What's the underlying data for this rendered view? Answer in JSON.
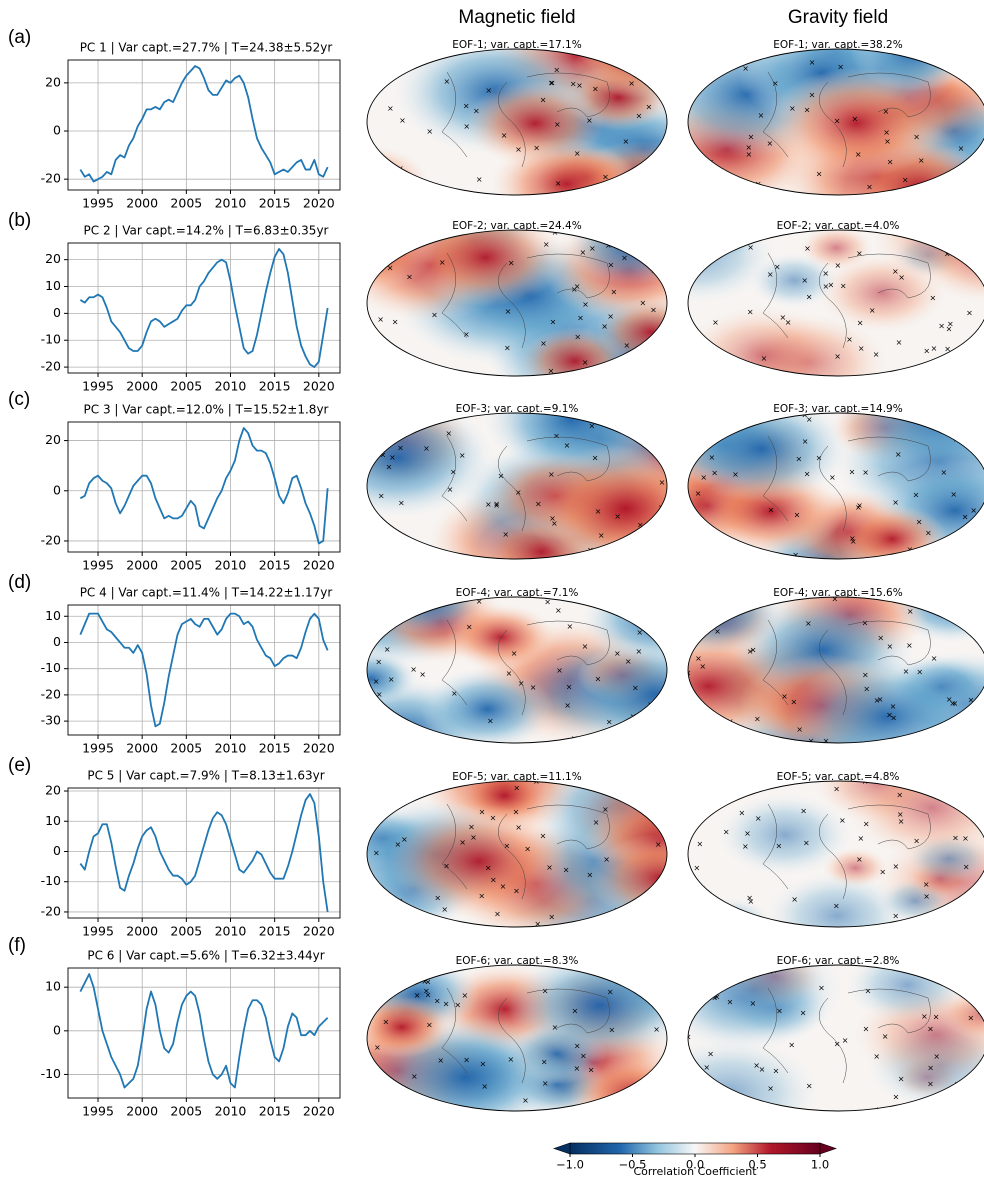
{
  "chart_data": [
    {
      "type": "line",
      "panel_label": "(a)",
      "title": "PC 1 | Var capt.=27.7% | T=24.38±5.52yr",
      "x": [
        1993,
        1993.5,
        1994,
        1994.5,
        1995,
        1995.5,
        1996,
        1996.5,
        1997,
        1997.5,
        1998,
        1998.5,
        1999,
        1999.5,
        2000,
        2000.5,
        2001,
        2001.5,
        2002,
        2002.5,
        2003,
        2003.5,
        2004,
        2004.5,
        2005,
        2005.5,
        2006,
        2006.5,
        2007,
        2007.5,
        2008,
        2008.5,
        2009,
        2009.5,
        2010,
        2010.5,
        2011,
        2011.5,
        2012,
        2012.5,
        2013,
        2013.5,
        2014,
        2014.5,
        2015,
        2015.5,
        2016,
        2016.5,
        2017,
        2017.5,
        2018,
        2018.5,
        2019,
        2019.5,
        2020,
        2020.5,
        2021
      ],
      "values": [
        -16,
        -19,
        -18,
        -21,
        -20,
        -19,
        -17,
        -18,
        -12,
        -10,
        -11,
        -6,
        -3,
        2,
        5,
        9,
        9,
        10,
        9,
        12,
        13,
        12,
        16,
        20,
        23,
        25,
        27,
        26,
        22,
        17,
        15,
        15,
        18,
        21,
        20,
        22,
        23,
        20,
        14,
        5,
        -3,
        -7,
        -10,
        -13,
        -18,
        -17,
        -16,
        -17,
        -15,
        -13,
        -12,
        -16,
        -16,
        -12,
        -18,
        -19,
        -15
      ],
      "color": "#1f77b4",
      "xlim": [
        1991.6,
        2022.4
      ],
      "xticks": [
        1995,
        2000,
        2005,
        2010,
        2015,
        2020
      ],
      "ylim": [
        -24.5,
        29.5
      ],
      "yticks": [
        -20,
        0,
        20
      ],
      "grid": true
    },
    {
      "type": "line",
      "panel_label": "(b)",
      "title": "PC 2 | Var capt.=14.2% | T=6.83±0.35yr",
      "x": [
        1993,
        1993.5,
        1994,
        1994.5,
        1995,
        1995.5,
        1996,
        1996.5,
        1997,
        1997.5,
        1998,
        1998.5,
        1999,
        1999.5,
        2000,
        2000.5,
        2001,
        2001.5,
        2002,
        2002.5,
        2003,
        2003.5,
        2004,
        2004.5,
        2005,
        2005.5,
        2006,
        2006.5,
        2007,
        2007.5,
        2008,
        2008.5,
        2009,
        2009.5,
        2010,
        2010.5,
        2011,
        2011.5,
        2012,
        2012.5,
        2013,
        2013.5,
        2014,
        2014.5,
        2015,
        2015.5,
        2016,
        2016.5,
        2017,
        2017.5,
        2018,
        2018.5,
        2019,
        2019.5,
        2020,
        2020.5,
        2021
      ],
      "values": [
        5,
        4,
        6,
        6,
        7,
        6,
        2,
        -3,
        -5,
        -7,
        -10,
        -13,
        -14,
        -14,
        -12,
        -7,
        -3,
        -2,
        -3,
        -5,
        -4,
        -3,
        -2,
        1,
        3,
        3,
        5,
        10,
        12,
        15,
        17,
        19,
        20,
        19,
        12,
        3,
        -5,
        -13,
        -15,
        -14,
        -8,
        0,
        8,
        15,
        21,
        24,
        22,
        15,
        5,
        -5,
        -12,
        -16,
        -19,
        -20,
        -18,
        -8,
        2
      ],
      "color": "#1f77b4",
      "xlim": [
        1991.6,
        2022.4
      ],
      "xticks": [
        1995,
        2000,
        2005,
        2010,
        2015,
        2020
      ],
      "ylim": [
        -22.2,
        26.2
      ],
      "yticks": [
        -20,
        -10,
        0,
        10,
        20
      ],
      "grid": true
    },
    {
      "type": "line",
      "panel_label": "(c)",
      "title": "PC 3 | Var capt.=12.0% | T=15.52±1.8yr",
      "x": [
        1993,
        1993.5,
        1994,
        1994.5,
        1995,
        1995.5,
        1996,
        1996.5,
        1997,
        1997.5,
        1998,
        1998.5,
        1999,
        1999.5,
        2000,
        2000.5,
        2001,
        2001.5,
        2002,
        2002.5,
        2003,
        2003.5,
        2004,
        2004.5,
        2005,
        2005.5,
        2006,
        2006.5,
        2007,
        2007.5,
        2008,
        2008.5,
        2009,
        2009.5,
        2010,
        2010.5,
        2011,
        2011.5,
        2012,
        2012.5,
        2013,
        2013.5,
        2014,
        2014.5,
        2015,
        2015.5,
        2016,
        2016.5,
        2017,
        2017.5,
        2018,
        2018.5,
        2019,
        2019.5,
        2020,
        2020.5,
        2021
      ],
      "values": [
        -3,
        -2,
        3,
        5,
        6,
        4,
        3,
        1,
        -5,
        -9,
        -6,
        -2,
        2,
        4,
        6,
        6,
        3,
        -3,
        -7,
        -11,
        -10,
        -11,
        -11,
        -10,
        -7,
        -4,
        -6,
        -14,
        -15,
        -11,
        -7,
        -3,
        0,
        5,
        8,
        12,
        20,
        25,
        23,
        18,
        16,
        16,
        15,
        11,
        5,
        -2,
        -5,
        -1,
        5,
        6,
        1,
        -5,
        -9,
        -14,
        -21,
        -20,
        1
      ],
      "color": "#1f77b4",
      "xlim": [
        1991.6,
        2022.4
      ],
      "xticks": [
        1995,
        2000,
        2005,
        2010,
        2015,
        2020
      ],
      "ylim": [
        -24.4,
        27.4
      ],
      "yticks": [
        -20,
        0,
        20
      ],
      "grid": true
    },
    {
      "type": "line",
      "panel_label": "(d)",
      "title": "PC 4 | Var capt.=11.4% | T=14.22±1.17yr",
      "x": [
        1993,
        1993.5,
        1994,
        1994.5,
        1995,
        1995.5,
        1996,
        1996.5,
        1997,
        1997.5,
        1998,
        1998.5,
        1999,
        1999.5,
        2000,
        2000.5,
        2001,
        2001.5,
        2002,
        2002.5,
        2003,
        2003.5,
        2004,
        2004.5,
        2005,
        2005.5,
        2006,
        2006.5,
        2007,
        2007.5,
        2008,
        2008.5,
        2009,
        2009.5,
        2010,
        2010.5,
        2011,
        2011.5,
        2012,
        2012.5,
        2013,
        2013.5,
        2014,
        2014.5,
        2015,
        2015.5,
        2016,
        2016.5,
        2017,
        2017.5,
        2018,
        2018.5,
        2019,
        2019.5,
        2020,
        2020.5,
        2021
      ],
      "values": [
        3,
        7,
        11,
        11,
        11,
        8,
        5,
        4,
        2,
        0,
        -2,
        -2,
        -4,
        -1,
        -4,
        -12,
        -24,
        -32,
        -31,
        -23,
        -13,
        -5,
        3,
        7,
        8,
        9,
        7,
        6,
        9,
        9,
        6,
        3,
        5,
        9,
        11,
        11,
        10,
        7,
        8,
        6,
        1,
        -2,
        -5,
        -6,
        -9,
        -8,
        -6,
        -5,
        -5,
        -6,
        -2,
        4,
        9,
        11,
        9,
        1,
        -3
      ],
      "color": "#1f77b4",
      "xlim": [
        1991.6,
        2022.4
      ],
      "xticks": [
        1995,
        2000,
        2005,
        2010,
        2015,
        2020
      ],
      "ylim": [
        -35.3,
        14.3
      ],
      "yticks": [
        -30,
        -20,
        -10,
        0,
        10
      ],
      "grid": true
    },
    {
      "type": "line",
      "panel_label": "(e)",
      "title": "PC 5 | Var capt.=7.9% | T=8.13±1.63yr",
      "x": [
        1993,
        1993.5,
        1994,
        1994.5,
        1995,
        1995.5,
        1996,
        1996.5,
        1997,
        1997.5,
        1998,
        1998.5,
        1999,
        1999.5,
        2000,
        2000.5,
        2001,
        2001.5,
        2002,
        2002.5,
        2003,
        2003.5,
        2004,
        2004.5,
        2005,
        2005.5,
        2006,
        2006.5,
        2007,
        2007.5,
        2008,
        2008.5,
        2009,
        2009.5,
        2010,
        2010.5,
        2011,
        2011.5,
        2012,
        2012.5,
        2013,
        2013.5,
        2014,
        2014.5,
        2015,
        2015.5,
        2016,
        2016.5,
        2017,
        2017.5,
        2018,
        2018.5,
        2019,
        2019.5,
        2020,
        2020.5,
        2021
      ],
      "values": [
        -4,
        -6,
        0,
        5,
        6,
        9,
        9,
        3,
        -5,
        -12,
        -13,
        -8,
        -4,
        1,
        5,
        7,
        8,
        5,
        0,
        -3,
        -6,
        -8,
        -8,
        -9,
        -11,
        -10,
        -8,
        -3,
        2,
        7,
        11,
        13,
        12,
        9,
        4,
        -1,
        -6,
        -7,
        -5,
        -3,
        0,
        -1,
        -4,
        -7,
        -9,
        -9,
        -9,
        -5,
        0,
        6,
        12,
        17,
        19,
        16,
        5,
        -10,
        -20
      ],
      "color": "#1f77b4",
      "xlim": [
        1991.6,
        2022.4
      ],
      "xticks": [
        1995,
        2000,
        2005,
        2010,
        2015,
        2020
      ],
      "ylim": [
        -22,
        21
      ],
      "yticks": [
        -20,
        -10,
        0,
        10,
        20
      ],
      "grid": true
    },
    {
      "type": "line",
      "panel_label": "(f)",
      "title": "PC 6 | Var capt.=5.6% | T=6.32±3.44yr",
      "x": [
        1993,
        1993.5,
        1994,
        1994.5,
        1995,
        1995.5,
        1996,
        1996.5,
        1997,
        1997.5,
        1998,
        1998.5,
        1999,
        1999.5,
        2000,
        2000.5,
        2001,
        2001.5,
        2002,
        2002.5,
        2003,
        2003.5,
        2004,
        2004.5,
        2005,
        2005.5,
        2006,
        2006.5,
        2007,
        2007.5,
        2008,
        2008.5,
        2009,
        2009.5,
        2010,
        2010.5,
        2011,
        2011.5,
        2012,
        2012.5,
        2013,
        2013.5,
        2014,
        2014.5,
        2015,
        2015.5,
        2016,
        2016.5,
        2017,
        2017.5,
        2018,
        2018.5,
        2019,
        2019.5,
        2020,
        2020.5,
        2021
      ],
      "values": [
        9,
        11,
        13,
        10,
        5,
        0,
        -3,
        -6,
        -8,
        -10,
        -13,
        -12,
        -11,
        -8,
        -2,
        5,
        9,
        6,
        0,
        -4,
        -5,
        -3,
        2,
        6,
        8,
        9,
        8,
        4,
        -2,
        -7,
        -10,
        -11,
        -10,
        -8,
        -12,
        -13,
        -6,
        0,
        5,
        7,
        7,
        6,
        3,
        -2,
        -6,
        -7,
        -4,
        1,
        4,
        3,
        -1,
        -1,
        0,
        -1,
        1,
        2,
        3
      ],
      "color": "#1f77b4",
      "xlim": [
        1991.6,
        2022.4
      ],
      "xticks": [
        1995,
        2000,
        2005,
        2010,
        2015,
        2020
      ],
      "ylim": [
        -15.4,
        14.4
      ],
      "yticks": [
        -10,
        0,
        10
      ],
      "grid": true
    }
  ],
  "figure": {
    "column_titles": [
      {
        "text": "Magnetic field",
        "color": "#0000ff"
      },
      {
        "text": "Gravity field",
        "color": "#ff0000"
      }
    ],
    "maps": [
      [
        "EOF-1; var. capt.=17.1%",
        "EOF-1; var. capt.=38.2%"
      ],
      [
        "EOF-2; var. capt.=24.4%",
        "EOF-2; var. capt.=4.0%"
      ],
      [
        "EOF-3; var. capt.=9.1%",
        "EOF-3; var. capt.=14.9%"
      ],
      [
        "EOF-4; var. capt.=7.1%",
        "EOF-4; var. capt.=15.6%"
      ],
      [
        "EOF-5; var. capt.=11.1%",
        "EOF-5; var. capt.=4.8%"
      ],
      [
        "EOF-6; var. capt.=8.3%",
        "EOF-6; var. capt.=2.8%"
      ]
    ],
    "colorbar": {
      "label": "Correlation Coefficient",
      "lim": [
        -1,
        1
      ],
      "ticks": [
        {
          "value": -1,
          "label": "−1.0"
        },
        {
          "value": -0.5,
          "label": "−0.5"
        },
        {
          "value": 0,
          "label": "0.0"
        },
        0.5,
        {
          "value": 1,
          "label": "1.0"
        }
      ]
    }
  }
}
